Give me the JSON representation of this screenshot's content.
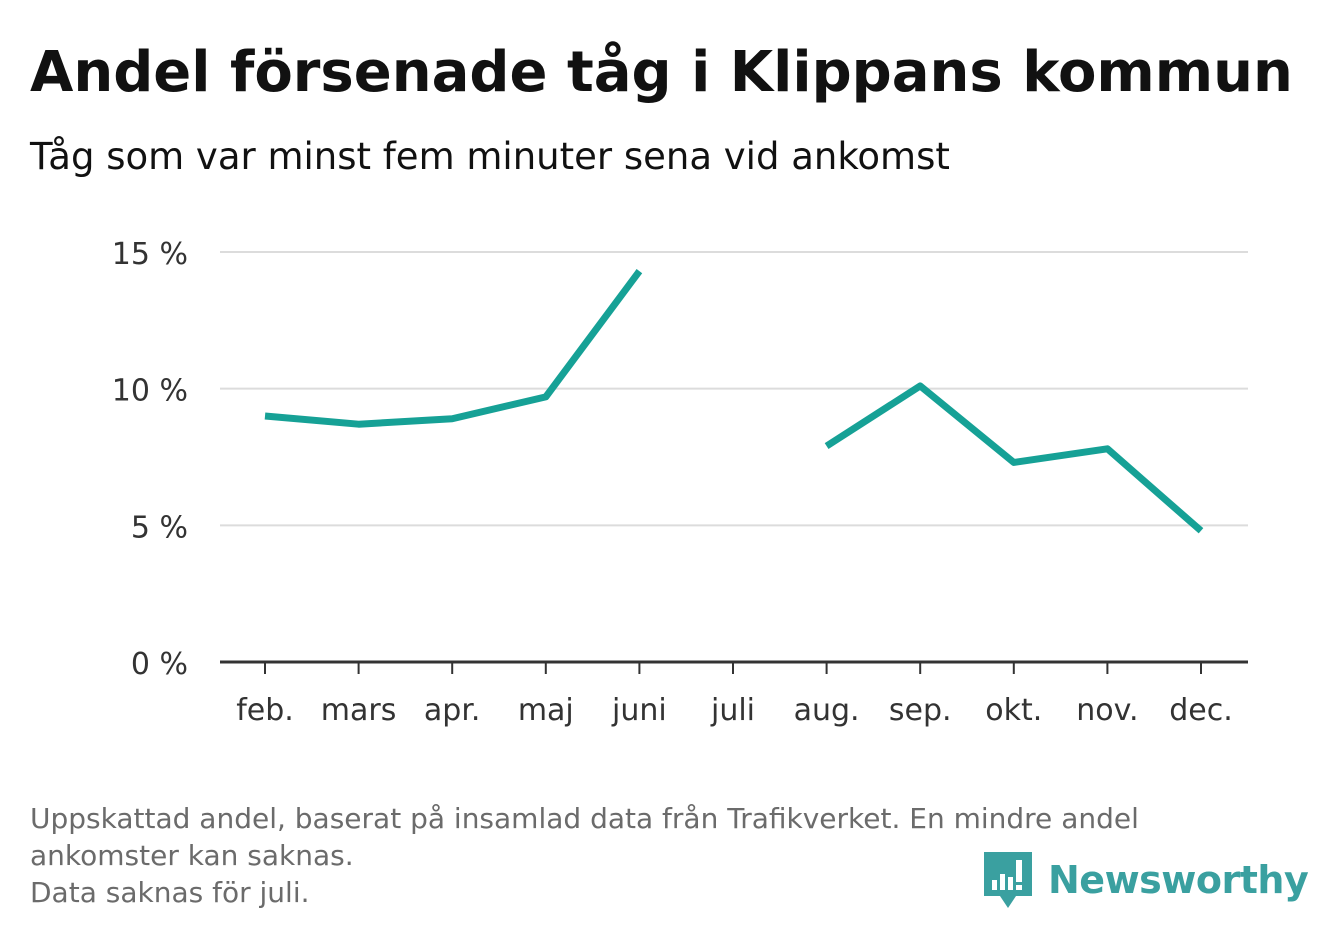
{
  "title": "Andel försenade tåg i Klippans kommun",
  "subtitle": "Tåg som var minst fem minuter sena vid ankomst",
  "footnote": {
    "line1": "Uppskattad andel, baserat på insamlad data från Trafikverket. En mindre andel",
    "line2": "ankomster kan saknas.",
    "line3": "Data saknas för juli."
  },
  "brand": {
    "name": "Newsworthy",
    "icon": "newsworthy-logo-icon",
    "color": "#3aa0a0"
  },
  "chart_data": {
    "type": "line",
    "categories": [
      "feb.",
      "mars",
      "apr.",
      "maj",
      "juni",
      "juli",
      "aug.",
      "sep.",
      "okt.",
      "nov.",
      "dec."
    ],
    "series": [
      {
        "values": [
          9.0,
          8.7,
          8.9,
          9.7,
          14.3,
          null,
          7.9,
          10.1,
          7.3,
          7.8,
          4.8
        ],
        "color": "#16a196"
      }
    ],
    "yticks": [
      0,
      5,
      10,
      15
    ],
    "ytick_labels": [
      "0 %",
      "5 %",
      "10 %",
      "15 %"
    ],
    "ylim": [
      0,
      15
    ],
    "grid": true
  }
}
